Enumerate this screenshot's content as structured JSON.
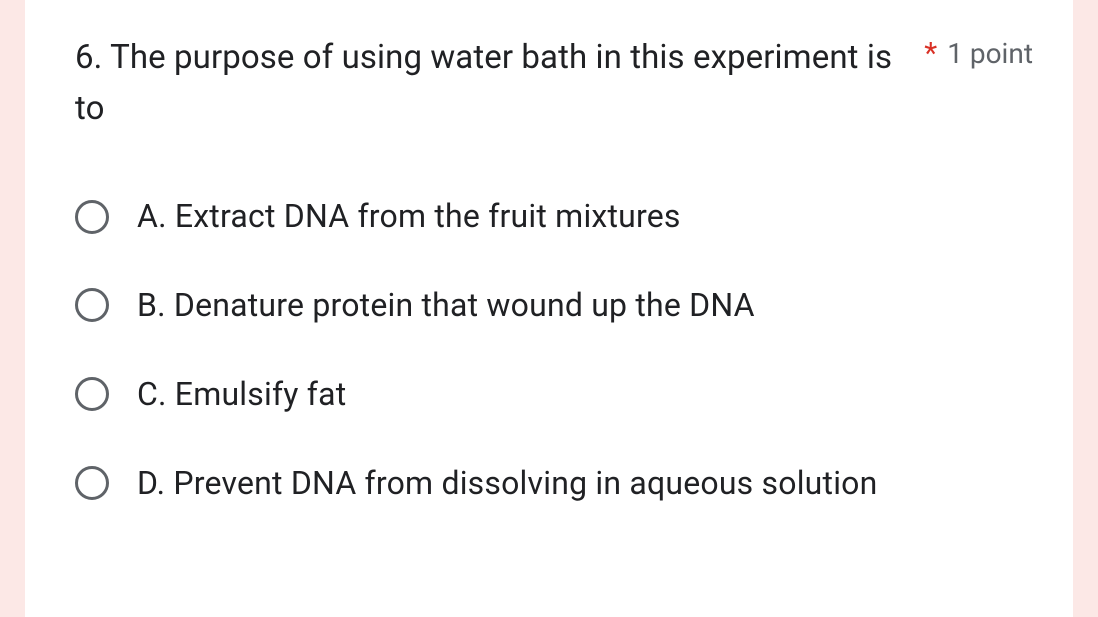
{
  "colors": {
    "page_background": "#fce8e6",
    "card_background": "#ffffff",
    "text_primary": "#202124",
    "text_secondary": "#5f6368",
    "required_red": "#d93025",
    "radio_border": "#5f6368"
  },
  "question": {
    "text": "6. The purpose of using water bath in this experiment is to",
    "required": true,
    "points_label": "1 point"
  },
  "options": [
    {
      "label": "A. Extract DNA from the fruit mixtures"
    },
    {
      "label": "B. Denature protein that wound up the DNA"
    },
    {
      "label": "C. Emulsify fat"
    },
    {
      "label": "D. Prevent DNA from dissolving in aqueous solution"
    }
  ]
}
